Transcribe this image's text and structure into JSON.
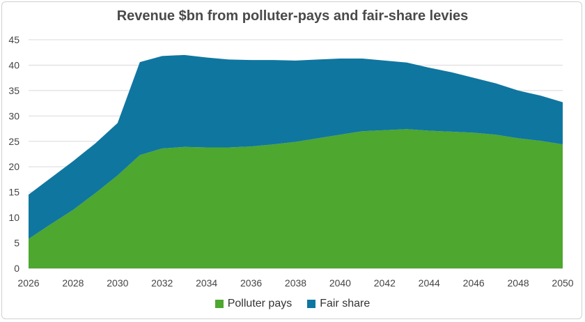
{
  "chart_data": {
    "type": "area",
    "stacked": true,
    "title": "Revenue $bn from polluter-pays and fair-share levies",
    "xlabel": "",
    "ylabel": "",
    "xlim": [
      2026,
      2050
    ],
    "ylim": [
      0,
      45
    ],
    "x_ticks": [
      2026,
      2028,
      2030,
      2032,
      2034,
      2036,
      2038,
      2040,
      2042,
      2044,
      2046,
      2048,
      2050
    ],
    "y_ticks": [
      0,
      5,
      10,
      15,
      20,
      25,
      30,
      35,
      40,
      45
    ],
    "grid": true,
    "legend_position": "bottom",
    "x": [
      2026,
      2027,
      2028,
      2029,
      2030,
      2031,
      2032,
      2033,
      2034,
      2035,
      2036,
      2037,
      2038,
      2039,
      2040,
      2041,
      2042,
      2043,
      2044,
      2045,
      2046,
      2047,
      2048,
      2049,
      2050
    ],
    "series": [
      {
        "name": "Polluter pays",
        "color": "#4ea72e",
        "values": [
          5.8,
          8.7,
          11.5,
          14.8,
          18.3,
          22.3,
          23.6,
          23.9,
          23.8,
          23.8,
          24.0,
          24.4,
          24.9,
          25.6,
          26.3,
          27.0,
          27.2,
          27.4,
          27.1,
          26.9,
          26.7,
          26.3,
          25.6,
          25.1,
          24.4
        ]
      },
      {
        "name": "Fair share",
        "color": "#0f76a0",
        "values": [
          8.7,
          9.1,
          9.6,
          9.8,
          10.3,
          18.3,
          18.2,
          18.1,
          17.7,
          17.3,
          17.0,
          16.6,
          16.0,
          15.5,
          15.0,
          14.3,
          13.7,
          13.1,
          12.4,
          11.7,
          10.8,
          10.1,
          9.4,
          8.9,
          8.3
        ]
      }
    ]
  }
}
